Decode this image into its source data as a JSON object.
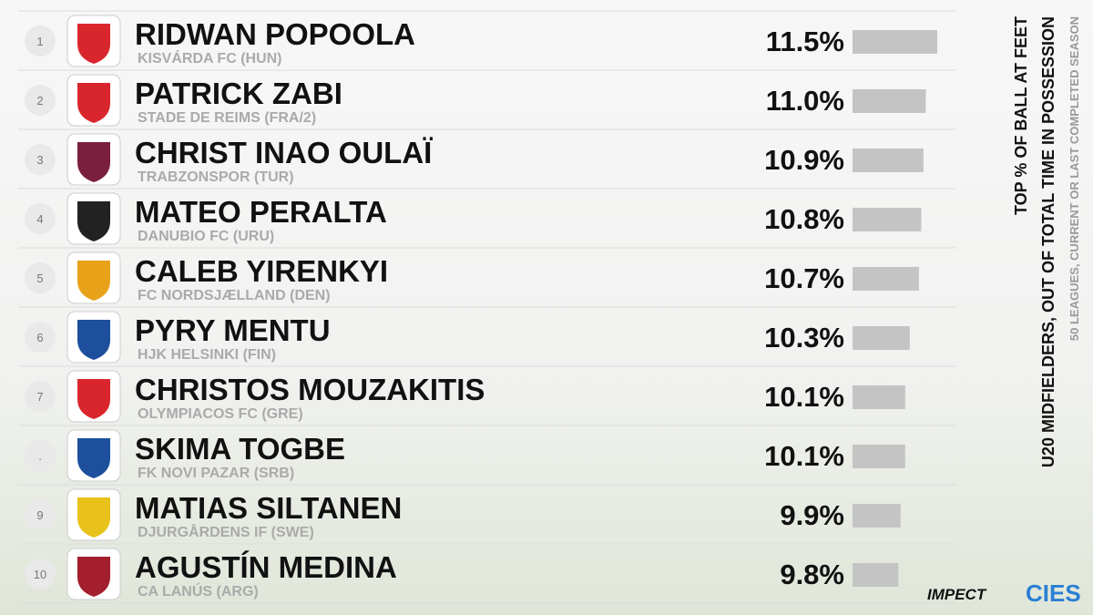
{
  "chart_data": {
    "type": "bar",
    "title": "TOP % OF BALL AT FEET",
    "subtitle": "U20 MIDFIELDERS, OUT OF TOTAL TIME IN POSSESSION",
    "note": "50 LEAGUES, CURRENT OR LAST COMPLETED SEASON",
    "ranks": [
      "1",
      "2",
      "3",
      "4",
      "5",
      "6",
      "7",
      ".",
      "9",
      "10"
    ],
    "categories": [
      "RIDWAN POPOOLA",
      "PATRICK ZABI",
      "CHRIST INAO OULAÏ",
      "MATEO PERALTA",
      "CALEB YIRENKYI",
      "PYRY MENTU",
      "CHRISTOS MOUZAKITIS",
      "SKIMA TOGBE",
      "MATIAS SILTANEN",
      "AGUSTÍN MEDINA"
    ],
    "clubs": [
      "KISVÁRDA FC (HUN)",
      "STADE DE REIMS (FRA/2)",
      "TRABZONSPOR (TUR)",
      "DANUBIO FC (URU)",
      "FC NORDSJÆLLAND (DEN)",
      "HJK HELSINKI (FIN)",
      "OLYMPIACOS FC (GRE)",
      "FK NOVI PAZAR (SRB)",
      "DJURGÅRDENS IF (SWE)",
      "CA LANÚS (ARG)"
    ],
    "values": [
      11.5,
      11.0,
      10.9,
      10.8,
      10.7,
      10.3,
      10.1,
      10.1,
      9.9,
      9.8
    ],
    "value_labels": [
      "11.5%",
      "11.0%",
      "10.9%",
      "10.8%",
      "10.7%",
      "10.3%",
      "10.1%",
      "10.1%",
      "9.9%",
      "9.8%"
    ],
    "color": "#c4c4c4",
    "xlim": [
      7.8,
      11.5
    ],
    "brands": [
      "IMPECT",
      "CIES"
    ]
  }
}
